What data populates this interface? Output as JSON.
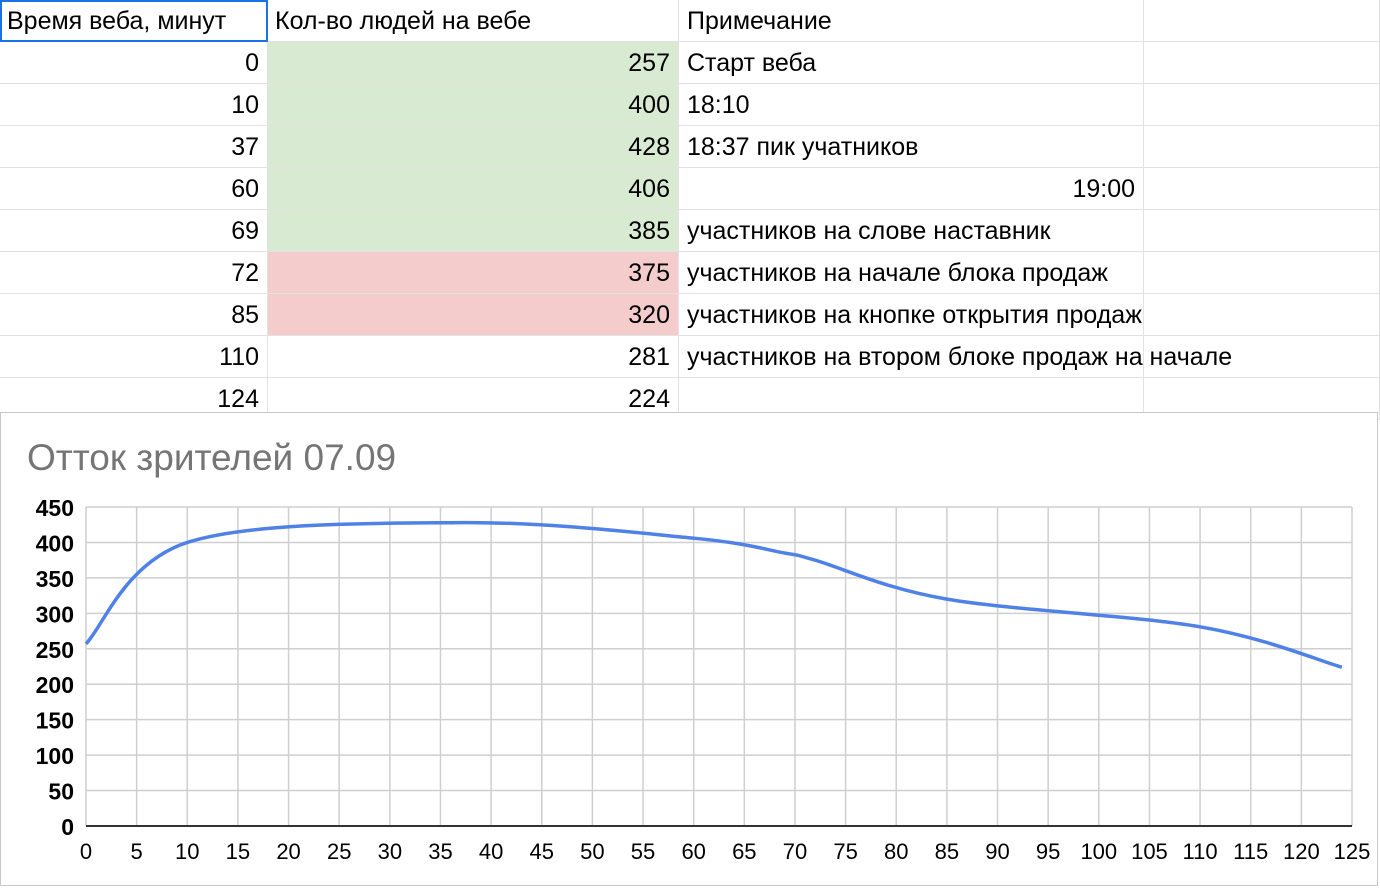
{
  "table": {
    "headers": [
      "Время веба, минут",
      "Кол-во людей на вебе",
      "Примечание"
    ],
    "rows": [
      {
        "time": "0",
        "count": "257",
        "note": "Старт веба",
        "fill": "#d9ead3",
        "note_align": "left"
      },
      {
        "time": "10",
        "count": "400",
        "note": "18:10",
        "fill": "#d9ead3",
        "note_align": "left"
      },
      {
        "time": "37",
        "count": "428",
        "note": "18:37 пик учатников",
        "fill": "#d9ead3",
        "note_align": "left"
      },
      {
        "time": "60",
        "count": "406",
        "note": "19:00",
        "fill": "#d9ead3",
        "note_align": "right"
      },
      {
        "time": "69",
        "count": "385",
        "note": "участников на слове наставник",
        "fill": "#d9ead3",
        "note_align": "left"
      },
      {
        "time": "72",
        "count": "375",
        "note": "участников на начале блока продаж",
        "fill": "#f4cccc",
        "note_align": "left"
      },
      {
        "time": "85",
        "count": "320",
        "note": "участников на кнопке открытия продаж",
        "fill": "#f4cccc",
        "note_align": "left"
      },
      {
        "time": "110",
        "count": "281",
        "note": "участников на втором блоке продаж на начале",
        "fill": "#ffffff",
        "note_align": "left"
      },
      {
        "time": "124",
        "count": "224",
        "note": "",
        "fill": "#ffffff",
        "note_align": "left"
      }
    ]
  },
  "chart_data": {
    "type": "line",
    "title": "Отток зрителей 07.09",
    "xlabel": "",
    "ylabel": "",
    "x": [
      0,
      10,
      37,
      60,
      69,
      72,
      85,
      110,
      124
    ],
    "series": [
      {
        "values": [
          257,
          400,
          428,
          406,
          385,
          375,
          320,
          281,
          224
        ]
      }
    ],
    "xlim": [
      0,
      125
    ],
    "ylim": [
      0,
      450
    ],
    "x_ticks": [
      0,
      5,
      10,
      15,
      20,
      25,
      30,
      35,
      40,
      45,
      50,
      55,
      60,
      65,
      70,
      75,
      80,
      85,
      90,
      95,
      100,
      105,
      110,
      115,
      120,
      125
    ],
    "y_ticks": [
      0,
      50,
      100,
      150,
      200,
      250,
      300,
      350,
      400,
      450
    ],
    "grid": true,
    "line_color": "#4f81e6",
    "smooth": true
  }
}
